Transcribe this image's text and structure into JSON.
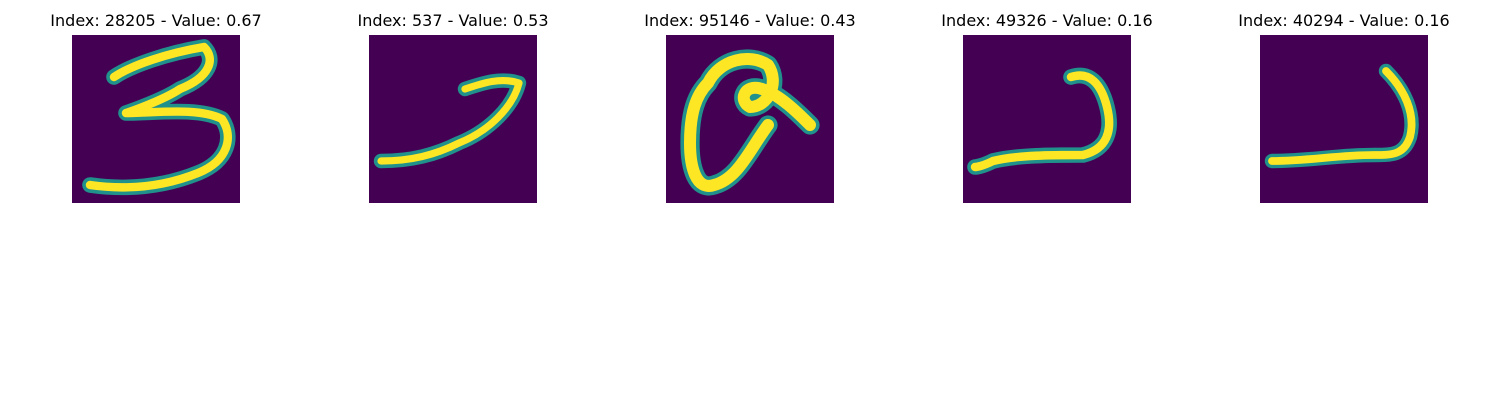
{
  "colors": {
    "background": "#440154",
    "stroke_mid": "#21918c",
    "stroke_core": "#fde725"
  },
  "panels": [
    {
      "title": "Index: 28205 - Value: 0.67",
      "digit": "3"
    },
    {
      "title": "Index: 537 - Value: 0.53",
      "digit": "7"
    },
    {
      "title": "Index: 95146 - Value: 0.43",
      "digit": "looped-stroke"
    },
    {
      "title": "Index: 49326 - Value: 0.16",
      "digit": "hook-stroke"
    },
    {
      "title": "Index: 40294 - Value: 0.16",
      "digit": "hook-stroke"
    }
  ]
}
